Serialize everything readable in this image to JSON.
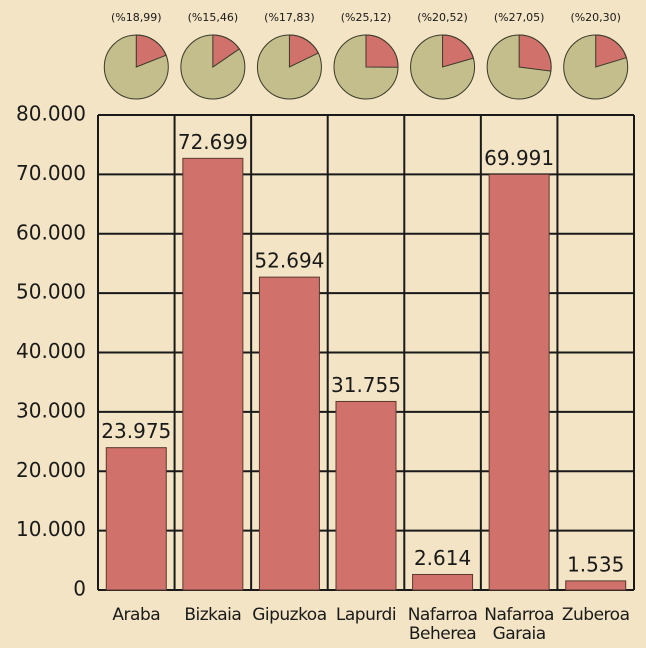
{
  "chart_data": [
    {
      "type": "bar",
      "categories": [
        "Araba",
        "Bizkaia",
        "Gipuzkoa",
        "Lapurdi",
        "Nafarroa Beherea",
        "Nafarroa Garaia",
        "Zuberoa"
      ],
      "values": [
        23975,
        72699,
        52694,
        31755,
        2614,
        69991,
        1535
      ],
      "value_labels": [
        "23.975",
        "72.699",
        "52.694",
        "31.755",
        "2.614",
        "69.991",
        "1.535"
      ],
      "color": "#d1716b",
      "ylim": [
        0,
        80000
      ],
      "yticks": [
        0,
        {
          "value": 10000,
          "label": "10.000"
        },
        {
          "value": 20000,
          "label": "20.000"
        },
        {
          "value": 30000,
          "label": "30.000"
        },
        {
          "value": 40000,
          "label": "40.000"
        },
        {
          "value": 50000,
          "label": "50.000"
        },
        {
          "value": 60000,
          "label": "60.000"
        },
        {
          "value": 70000,
          "label": "70.000"
        },
        {
          "value": 80000,
          "label": "80.000"
        }
      ],
      "grid": true
    },
    {
      "type": "pie",
      "values": [
        18.99,
        15.46,
        17.83,
        25.12,
        20.52,
        27.05,
        20.3
      ],
      "value_labels": [
        "(%18,99)",
        "(%15,46)",
        "(%17,83)",
        "(%25,12)",
        "(%20,52)",
        "(%27,05)",
        "(%20,30)"
      ],
      "color": "#d1716b"
    }
  ]
}
